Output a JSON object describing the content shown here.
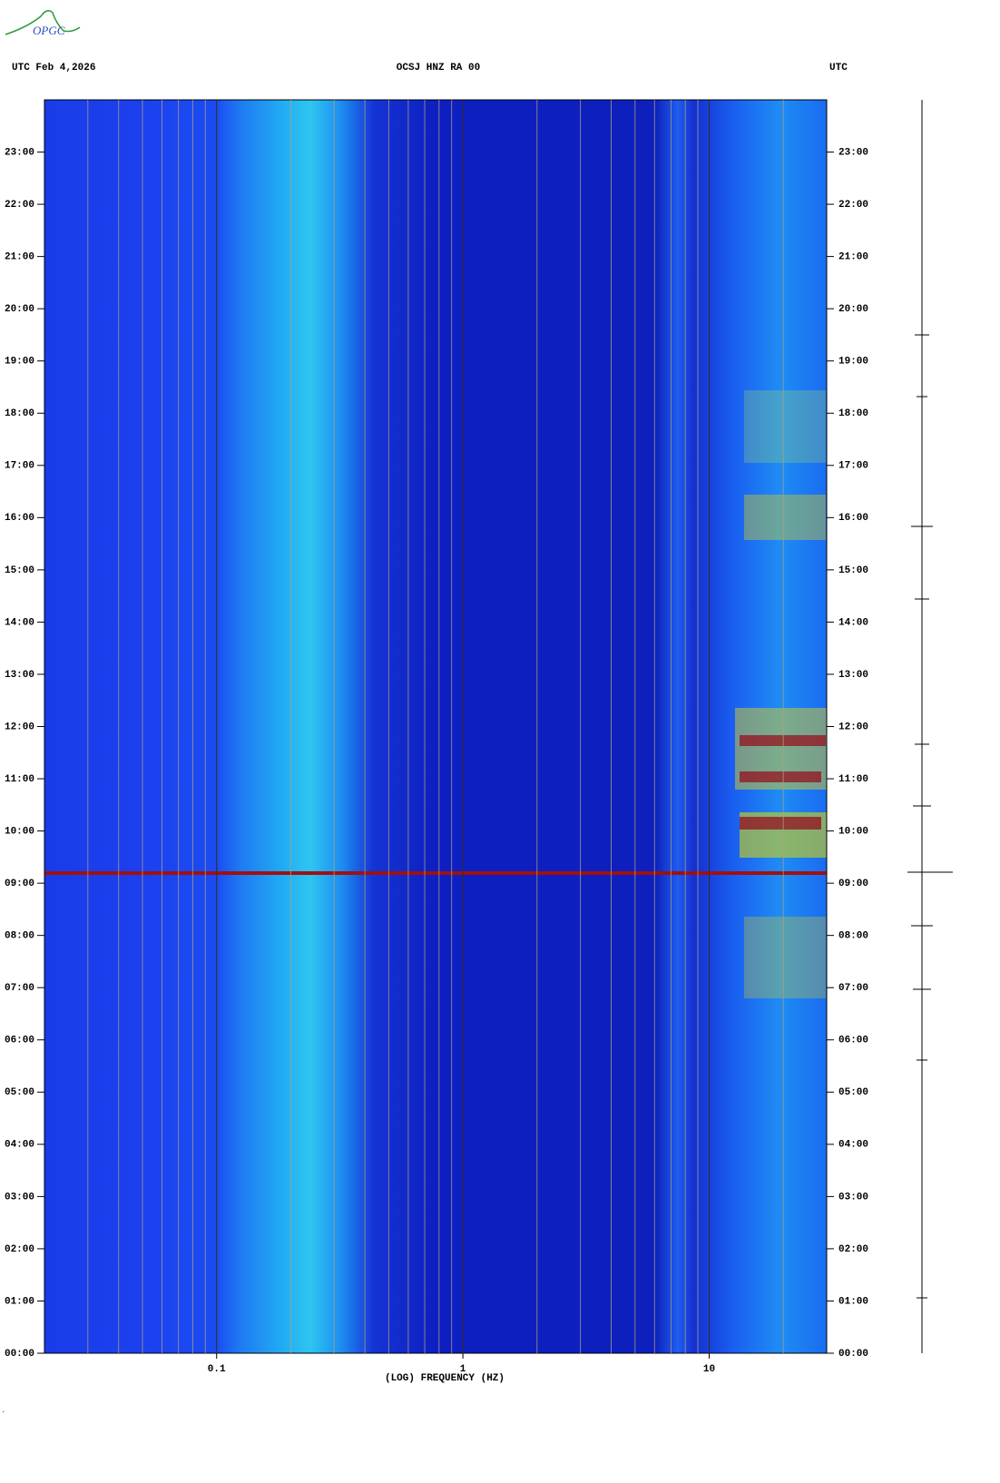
{
  "logo": "OPGC",
  "chart_data": {
    "type": "spectrogram",
    "title": "OCSJ HNZ RA 00",
    "date_label": "UTC  Feb 4,2026",
    "timezone_label": "UTC",
    "x_label": "(LOG) FREQUENCY (HZ)",
    "xlim": [
      0.02,
      30
    ],
    "log_x": true,
    "xticks": [
      {
        "value": 0.1,
        "label": "0.1"
      },
      1,
      10
    ],
    "minor_xticks": [
      0.03,
      0.04,
      0.05,
      0.06,
      0.07,
      0.08,
      0.09,
      0.2,
      0.3,
      0.4,
      0.5,
      0.6,
      0.7,
      0.8,
      0.9,
      2,
      3,
      4,
      5,
      6,
      7,
      8,
      9,
      20
    ],
    "ylim": [
      0,
      24
    ],
    "yticks": [
      {
        "value": 0,
        "label": "00:00"
      },
      {
        "value": 1,
        "label": "01:00"
      },
      {
        "value": 2,
        "label": "02:00"
      },
      {
        "value": 3,
        "label": "03:00"
      },
      {
        "value": 4,
        "label": "04:00"
      },
      {
        "value": 5,
        "label": "05:00"
      },
      {
        "value": 6,
        "label": "06:00"
      },
      {
        "value": 7,
        "label": "07:00"
      },
      {
        "value": 8,
        "label": "08:00"
      },
      {
        "value": 9,
        "label": "09:00"
      },
      {
        "value": 10,
        "label": "10:00"
      },
      {
        "value": 11,
        "label": "11:00"
      },
      {
        "value": 12,
        "label": "12:00"
      },
      {
        "value": 13,
        "label": "13:00"
      },
      {
        "value": 14,
        "label": "14:00"
      },
      {
        "value": 15,
        "label": "15:00"
      },
      {
        "value": 16,
        "label": "16:00"
      },
      {
        "value": 17,
        "label": "17:00"
      },
      {
        "value": 18,
        "label": "18:00"
      },
      {
        "value": 19,
        "label": "19:00"
      },
      {
        "value": 20,
        "label": "20:00"
      },
      {
        "value": 21,
        "label": "21:00"
      },
      {
        "value": 22,
        "label": "22:00"
      },
      {
        "value": 23,
        "label": "23:00"
      }
    ]
  }
}
